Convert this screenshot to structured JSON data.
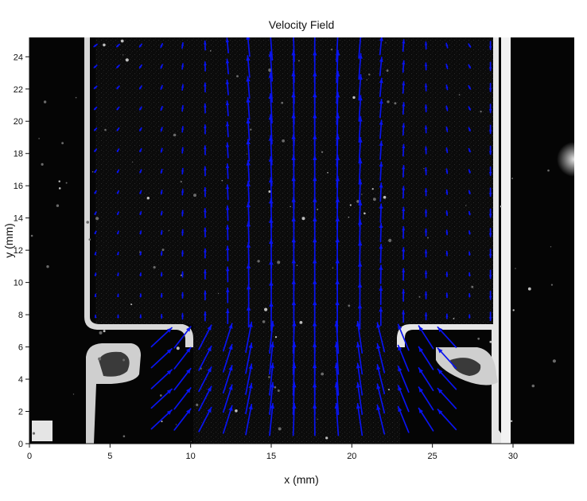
{
  "chart_data": {
    "type": "quiver",
    "title": "Velocity Field",
    "xlabel": "x (mm)",
    "ylabel": "y (mm)",
    "xlim": [
      0,
      33.8
    ],
    "ylim": [
      0,
      25.2
    ],
    "x_ticks": [
      0,
      5,
      10,
      15,
      20,
      25,
      30
    ],
    "y_ticks": [
      0,
      2,
      4,
      6,
      8,
      10,
      12,
      14,
      16,
      18,
      20,
      22,
      24
    ],
    "grid": false,
    "background": "grayscale particle image",
    "arrow_color": "#0a14f0",
    "channel": {
      "left_wall_x": 4.0,
      "right_wall_x": 29.2,
      "nozzle_left_x": 10.0,
      "nozzle_right_x": 23.2,
      "nozzle_y": [
        6.1,
        7.6
      ]
    },
    "vector_grid": {
      "x": [
        4.1,
        5.5,
        6.9,
        8.2,
        9.5,
        10.9,
        12.3,
        13.6,
        15.0,
        16.4,
        17.7,
        19.1,
        20.5,
        21.8,
        23.2,
        24.6,
        25.9,
        27.3,
        28.6
      ],
      "y": [
        1.5,
        2.8,
        4.0,
        5.3,
        6.6,
        7.9,
        9.2,
        10.5,
        11.8,
        13.1,
        14.3,
        15.6,
        16.9,
        18.2,
        19.5,
        20.8,
        22.1,
        23.4,
        24.7
      ]
    }
  }
}
